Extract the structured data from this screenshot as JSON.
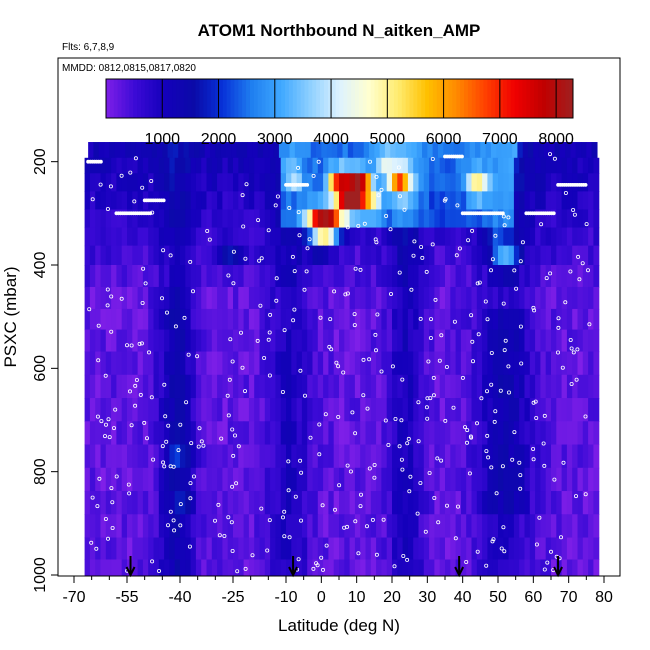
{
  "chart_data": {
    "type": "heatmap",
    "title": "ATOM1 Northbound N_aitken_AMP",
    "subtitle_flights": "Flts: 6,7,8,9",
    "subtitle_dates": "MMDD: 0812,0815,0817,0820",
    "xlabel": "Latitude (deg N)",
    "ylabel": "PSXC (mbar)",
    "xlim": [
      -70,
      80
    ],
    "ylim": [
      1000,
      100
    ],
    "x_ticks": [
      -70,
      -55,
      -40,
      -25,
      -10,
      0,
      10,
      20,
      30,
      40,
      50,
      60,
      70,
      80
    ],
    "x_tick_labels": [
      "-70",
      "-55",
      "-40",
      "-25",
      "-10",
      "0",
      "10",
      "20",
      "30",
      "40",
      "50",
      "60",
      "70",
      "80"
    ],
    "y_ticks": [
      200,
      400,
      600,
      800,
      1000
    ],
    "y_tick_labels": [
      "200",
      "400",
      "600",
      "800",
      "1000"
    ],
    "colorbar": {
      "range": [
        0,
        8300
      ],
      "ticks": [
        1000,
        2000,
        3000,
        4000,
        5000,
        6000,
        7000,
        8000
      ],
      "tick_labels": [
        "1000",
        "2000",
        "3000",
        "4000",
        "5000",
        "6000",
        "7000",
        "8000"
      ],
      "colors": [
        "#7f1fe8",
        "#3b0ad6",
        "#1400bb",
        "#0b0aa8",
        "#0732d8",
        "#1f7ff0",
        "#3fa8ff",
        "#8fd0ff",
        "#ddf2ff",
        "#ffffd0",
        "#ffec70",
        "#ffc000",
        "#ff8a00",
        "#ff4000",
        "#f00000",
        "#c00000",
        "#a02020"
      ]
    },
    "flight_arrows_lat": [
      -54,
      -8,
      39,
      67
    ],
    "pressure_levels": [
      180,
      205,
      240,
      275,
      310,
      345,
      380,
      420,
      465,
      505,
      545,
      590,
      635,
      680,
      725,
      770,
      815,
      860,
      905,
      950,
      990
    ],
    "hotspots": [
      {
        "lat": 8,
        "p": 275,
        "value": 8000
      },
      {
        "lat": 5,
        "p": 240,
        "value": 6200
      },
      {
        "lat": 11,
        "p": 245,
        "value": 6800
      },
      {
        "lat": 22,
        "p": 240,
        "value": 5400
      },
      {
        "lat": -1,
        "p": 310,
        "value": 5800
      },
      {
        "lat": 3,
        "p": 320,
        "value": 6400
      },
      {
        "lat": 14,
        "p": 285,
        "value": 4500
      },
      {
        "lat": 0,
        "p": 350,
        "value": 4300
      },
      {
        "lat": 44,
        "p": 245,
        "value": 4200
      },
      {
        "lat": -26,
        "p": 390,
        "value": 2900
      },
      {
        "lat": -40,
        "p": 780,
        "value": 2300
      },
      {
        "lat": -38,
        "p": 860,
        "value": 1900
      },
      {
        "lat": 50,
        "p": 360,
        "value": 2700
      },
      {
        "lat": 53,
        "p": 380,
        "value": 3200
      },
      {
        "lat": 18,
        "p": 200,
        "value": 3000
      },
      {
        "lat": -8,
        "p": 230,
        "value": 2800
      }
    ]
  }
}
